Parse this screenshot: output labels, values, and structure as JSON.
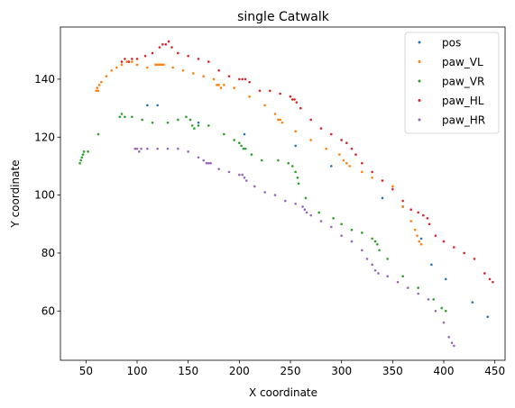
{
  "chart_data": {
    "type": "scatter",
    "title": "single Catwalk",
    "xlabel": "X coordinate",
    "ylabel": "Y coordinate",
    "xlim": [
      25,
      460
    ],
    "ylim": [
      43,
      158
    ],
    "xticks": [
      50,
      100,
      150,
      200,
      250,
      300,
      350,
      400,
      450
    ],
    "yticks": [
      60,
      80,
      100,
      120,
      140
    ],
    "grid": false,
    "legend_position": "upper right",
    "series": [
      {
        "name": "pos",
        "color": "#1f77b4",
        "points": [
          [
            110,
            131
          ],
          [
            120,
            131
          ],
          [
            160,
            125
          ],
          [
            205,
            121
          ],
          [
            255,
            117
          ],
          [
            290,
            110
          ],
          [
            340,
            99
          ],
          [
            360,
            96
          ],
          [
            378,
            85
          ],
          [
            388,
            76
          ],
          [
            402,
            71
          ],
          [
            428,
            63
          ],
          [
            443,
            58
          ]
        ]
      },
      {
        "name": "paw_VL",
        "color": "#ff7f0e",
        "points": [
          [
            60,
            136
          ],
          [
            61,
            137
          ],
          [
            62,
            136
          ],
          [
            63,
            138
          ],
          [
            65,
            139
          ],
          [
            70,
            141
          ],
          [
            75,
            143
          ],
          [
            80,
            144
          ],
          [
            85,
            145
          ],
          [
            90,
            146
          ],
          [
            95,
            146
          ],
          [
            100,
            145
          ],
          [
            110,
            144
          ],
          [
            118,
            145
          ],
          [
            120,
            145
          ],
          [
            122,
            145
          ],
          [
            124,
            145
          ],
          [
            126,
            145
          ],
          [
            135,
            144
          ],
          [
            145,
            143
          ],
          [
            155,
            142
          ],
          [
            165,
            141
          ],
          [
            175,
            140
          ],
          [
            178,
            138
          ],
          [
            180,
            138
          ],
          [
            182,
            137
          ],
          [
            185,
            138
          ],
          [
            195,
            137
          ],
          [
            210,
            134
          ],
          [
            225,
            131
          ],
          [
            235,
            128
          ],
          [
            238,
            126
          ],
          [
            240,
            126
          ],
          [
            242,
            125
          ],
          [
            255,
            122
          ],
          [
            270,
            119
          ],
          [
            285,
            116
          ],
          [
            298,
            114
          ],
          [
            302,
            112
          ],
          [
            305,
            111
          ],
          [
            308,
            110
          ],
          [
            320,
            108
          ],
          [
            330,
            106
          ],
          [
            340,
            105
          ],
          [
            350,
            103
          ],
          [
            360,
            96
          ],
          [
            368,
            91
          ],
          [
            372,
            88
          ],
          [
            374,
            86
          ],
          [
            376,
            84
          ],
          [
            378,
            83
          ]
        ]
      },
      {
        "name": "paw_VR",
        "color": "#2ca02c",
        "points": [
          [
            44,
            111
          ],
          [
            45,
            112
          ],
          [
            46,
            113
          ],
          [
            47,
            114
          ],
          [
            48,
            115
          ],
          [
            52,
            115
          ],
          [
            62,
            121
          ],
          [
            83,
            127
          ],
          [
            85,
            128
          ],
          [
            88,
            127
          ],
          [
            95,
            127
          ],
          [
            105,
            126
          ],
          [
            115,
            125
          ],
          [
            130,
            125
          ],
          [
            140,
            126
          ],
          [
            148,
            127
          ],
          [
            152,
            126
          ],
          [
            154,
            124
          ],
          [
            156,
            123
          ],
          [
            160,
            124
          ],
          [
            170,
            124
          ],
          [
            185,
            121
          ],
          [
            195,
            119
          ],
          [
            200,
            118
          ],
          [
            202,
            117
          ],
          [
            204,
            116
          ],
          [
            206,
            116
          ],
          [
            212,
            114
          ],
          [
            222,
            112
          ],
          [
            238,
            112
          ],
          [
            248,
            111
          ],
          [
            252,
            110
          ],
          [
            255,
            108
          ],
          [
            257,
            106
          ],
          [
            258,
            104
          ],
          [
            265,
            99
          ],
          [
            278,
            94
          ],
          [
            292,
            92
          ],
          [
            300,
            90
          ],
          [
            310,
            88
          ],
          [
            320,
            87
          ],
          [
            330,
            85
          ],
          [
            333,
            84
          ],
          [
            335,
            83
          ],
          [
            337,
            81
          ],
          [
            345,
            78
          ],
          [
            360,
            72
          ],
          [
            375,
            68
          ],
          [
            390,
            64
          ],
          [
            398,
            61
          ],
          [
            402,
            60
          ]
        ]
      },
      {
        "name": "paw_HL",
        "color": "#d62728",
        "points": [
          [
            85,
            146
          ],
          [
            88,
            147
          ],
          [
            92,
            146
          ],
          [
            95,
            147
          ],
          [
            100,
            147
          ],
          [
            108,
            148
          ],
          [
            115,
            149
          ],
          [
            122,
            151
          ],
          [
            125,
            152
          ],
          [
            128,
            152
          ],
          [
            131,
            153
          ],
          [
            134,
            151
          ],
          [
            140,
            149
          ],
          [
            150,
            148
          ],
          [
            160,
            147
          ],
          [
            170,
            146
          ],
          [
            180,
            143
          ],
          [
            190,
            141
          ],
          [
            200,
            140
          ],
          [
            203,
            140
          ],
          [
            206,
            140
          ],
          [
            210,
            139
          ],
          [
            220,
            136
          ],
          [
            230,
            136
          ],
          [
            240,
            135
          ],
          [
            250,
            134
          ],
          [
            252,
            133
          ],
          [
            254,
            133
          ],
          [
            256,
            132
          ],
          [
            260,
            130
          ],
          [
            270,
            126
          ],
          [
            280,
            123
          ],
          [
            290,
            121
          ],
          [
            300,
            119
          ],
          [
            305,
            118
          ],
          [
            310,
            116
          ],
          [
            314,
            114
          ],
          [
            320,
            111
          ],
          [
            330,
            108
          ],
          [
            340,
            105
          ],
          [
            350,
            102
          ],
          [
            360,
            98
          ],
          [
            368,
            95
          ],
          [
            375,
            94
          ],
          [
            380,
            93
          ],
          [
            384,
            92
          ],
          [
            386,
            90
          ],
          [
            392,
            86
          ],
          [
            400,
            84
          ],
          [
            410,
            82
          ],
          [
            420,
            80
          ],
          [
            430,
            78
          ],
          [
            440,
            73
          ],
          [
            445,
            71
          ],
          [
            448,
            70
          ]
        ]
      },
      {
        "name": "paw_HR",
        "color": "#9467bd",
        "points": [
          [
            98,
            116
          ],
          [
            100,
            116
          ],
          [
            102,
            115
          ],
          [
            104,
            116
          ],
          [
            110,
            116
          ],
          [
            120,
            116
          ],
          [
            130,
            116
          ],
          [
            140,
            116
          ],
          [
            150,
            115
          ],
          [
            160,
            113
          ],
          [
            165,
            112
          ],
          [
            168,
            111
          ],
          [
            170,
            111
          ],
          [
            172,
            111
          ],
          [
            180,
            109
          ],
          [
            190,
            108
          ],
          [
            200,
            107
          ],
          [
            203,
            107
          ],
          [
            205,
            106
          ],
          [
            207,
            105
          ],
          [
            215,
            103
          ],
          [
            225,
            101
          ],
          [
            235,
            100
          ],
          [
            245,
            98
          ],
          [
            255,
            97
          ],
          [
            262,
            96
          ],
          [
            264,
            95
          ],
          [
            266,
            94
          ],
          [
            270,
            93
          ],
          [
            280,
            91
          ],
          [
            290,
            89
          ],
          [
            300,
            86
          ],
          [
            310,
            84
          ],
          [
            320,
            81
          ],
          [
            325,
            78
          ],
          [
            330,
            76
          ],
          [
            333,
            74
          ],
          [
            336,
            73
          ],
          [
            345,
            72
          ],
          [
            355,
            70
          ],
          [
            365,
            68
          ],
          [
            375,
            66
          ],
          [
            385,
            64
          ],
          [
            392,
            60
          ],
          [
            400,
            56
          ],
          [
            405,
            51
          ],
          [
            408,
            49
          ],
          [
            410,
            48
          ]
        ]
      }
    ]
  }
}
